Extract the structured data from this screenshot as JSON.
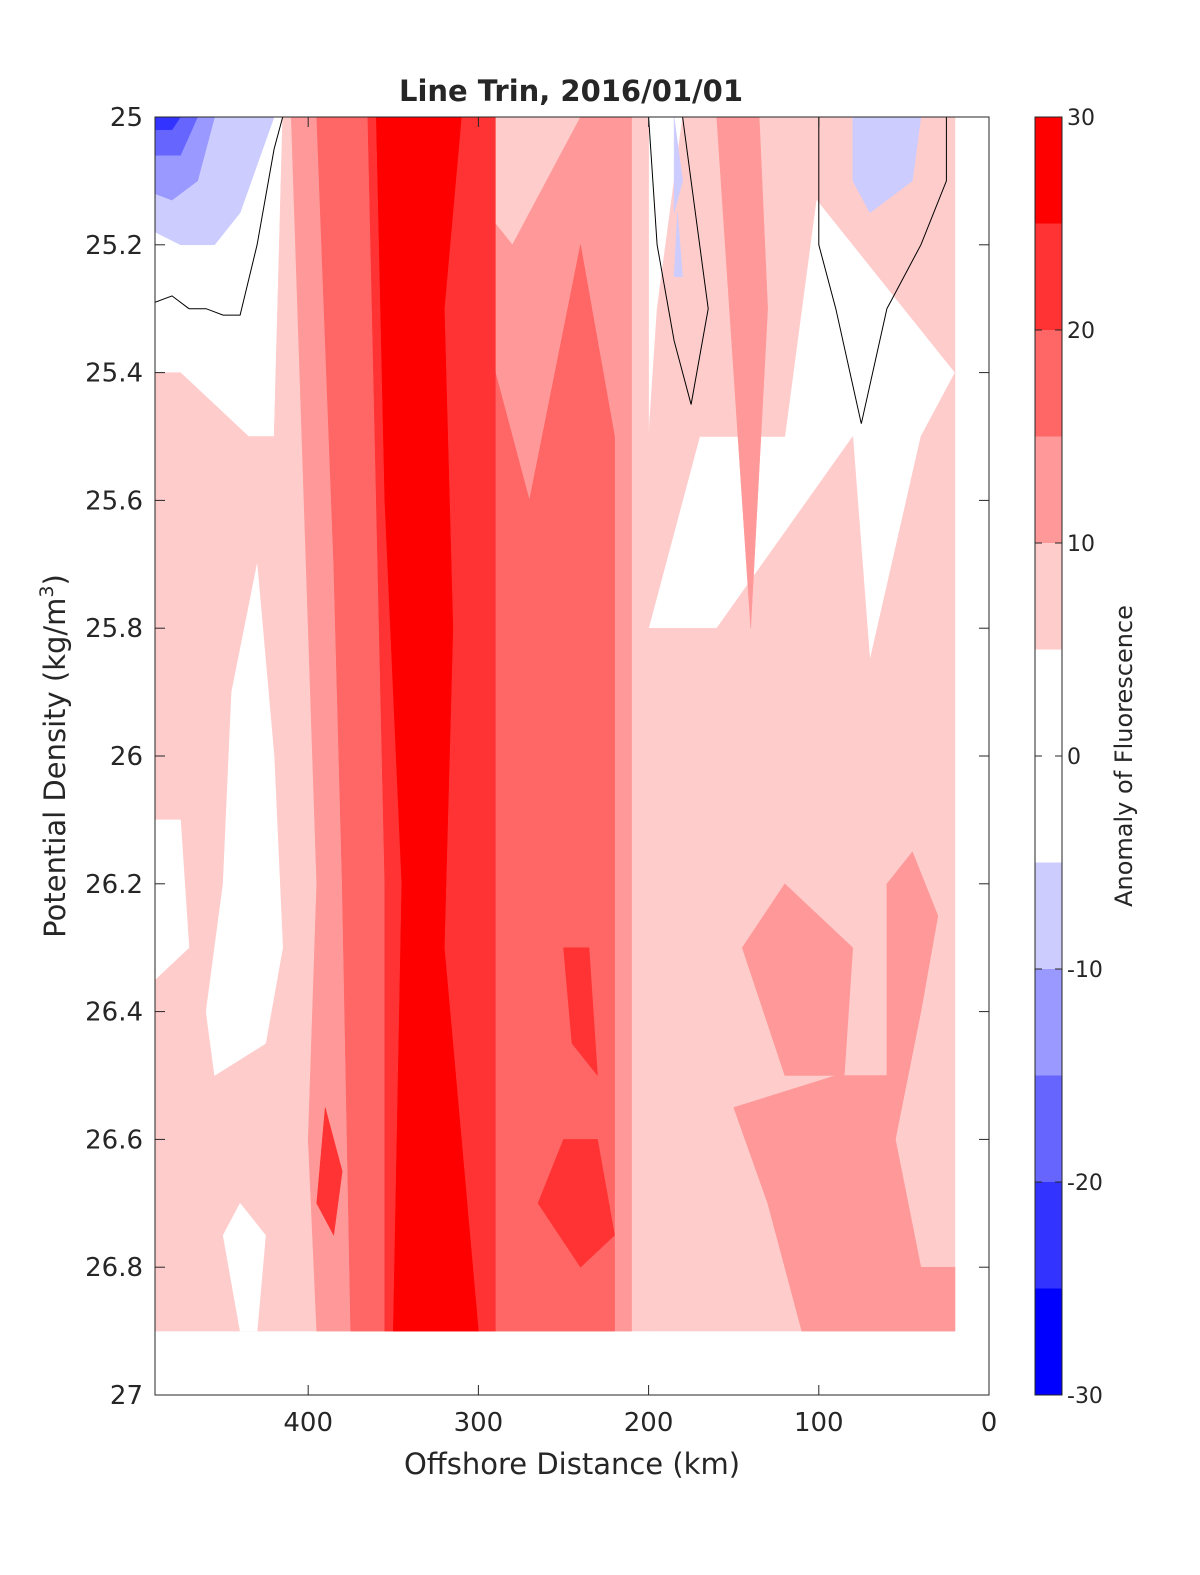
{
  "chart_data": {
    "type": "contour",
    "title": "Line Trin, 2016/01/01",
    "xlabel": "Offshore Distance (km)",
    "ylabel_main": "Potential Density (kg/m",
    "ylabel_sup": "3",
    "ylabel_close": ")",
    "colorbar_label": "Anomaly of Fluorescence",
    "xlim": [
      490,
      0
    ],
    "ylim": [
      25,
      27
    ],
    "y_reversed": true,
    "x_reversed": true,
    "xticks": [
      {
        "value": 400,
        "label": "400"
      },
      {
        "value": 300,
        "label": "300"
      },
      {
        "value": 200,
        "label": "200"
      },
      {
        "value": 100,
        "label": "100"
      },
      {
        "value": 0,
        "label": "0"
      }
    ],
    "yticks": [
      {
        "value": 25,
        "label": "25"
      },
      {
        "value": 25.2,
        "label": "25.2"
      },
      {
        "value": 25.4,
        "label": "25.4"
      },
      {
        "value": 25.6,
        "label": "25.6"
      },
      {
        "value": 25.8,
        "label": "25.8"
      },
      {
        "value": 26,
        "label": "26"
      },
      {
        "value": 26.2,
        "label": "26.2"
      },
      {
        "value": 26.4,
        "label": "26.4"
      },
      {
        "value": 26.6,
        "label": "26.6"
      },
      {
        "value": 26.8,
        "label": "26.8"
      },
      {
        "value": 27,
        "label": "27"
      }
    ],
    "colorbar": {
      "range": [
        -30,
        30
      ],
      "ticks": [
        {
          "value": 30,
          "label": "30"
        },
        {
          "value": 20,
          "label": "20"
        },
        {
          "value": 10,
          "label": "10"
        },
        {
          "value": 0,
          "label": "0"
        },
        {
          "value": -10,
          "label": "-10"
        },
        {
          "value": -20,
          "label": "-20"
        },
        {
          "value": -30,
          "label": "-30"
        }
      ],
      "levels": [
        {
          "from": 25,
          "to": 30,
          "color": "#ff0000"
        },
        {
          "from": 20,
          "to": 25,
          "color": "#ff3333"
        },
        {
          "from": 15,
          "to": 20,
          "color": "#ff6666"
        },
        {
          "from": 10,
          "to": 15,
          "color": "#ff9999"
        },
        {
          "from": 5,
          "to": 10,
          "color": "#ffcccc"
        },
        {
          "from": -5,
          "to": 5,
          "color": "#ffffff"
        },
        {
          "from": -10,
          "to": -5,
          "color": "#ccccff"
        },
        {
          "from": -15,
          "to": -10,
          "color": "#9999ff"
        },
        {
          "from": -20,
          "to": -15,
          "color": "#6666ff"
        },
        {
          "from": -25,
          "to": -20,
          "color": "#3333ff"
        },
        {
          "from": -30,
          "to": -25,
          "color": "#0000ff"
        }
      ]
    },
    "data_extent": {
      "x_min": 0,
      "x_max": 490,
      "y_bottom": 26.9
    },
    "regions": [
      {
        "level": 5,
        "points": [
          [
            490,
            25.4
          ],
          [
            475,
            25.4
          ],
          [
            455,
            25.45
          ],
          [
            435,
            25.5
          ],
          [
            420,
            25.5
          ],
          [
            415,
            25
          ],
          [
            200,
            25
          ],
          [
            200,
            26.9
          ],
          [
            490,
            26.9
          ]
        ]
      },
      {
        "level": 5,
        "points": [
          [
            200,
            25.5
          ],
          [
            195,
            25.3
          ],
          [
            180,
            25
          ],
          [
            95,
            25
          ],
          [
            120,
            25.5
          ],
          [
            170,
            25.5
          ],
          [
            200,
            25.8
          ]
        ]
      },
      {
        "level": 5,
        "points": [
          [
            140,
            25
          ],
          [
            20,
            25
          ],
          [
            20,
            26.9
          ],
          [
            200,
            26.9
          ],
          [
            200,
            25.8
          ],
          [
            160,
            25.8
          ],
          [
            80,
            25.5
          ],
          [
            70,
            25.85
          ],
          [
            40,
            25.5
          ],
          [
            20,
            25.4
          ]
        ]
      },
      {
        "level": 0,
        "points": [
          [
            430,
            25.7
          ],
          [
            445,
            25.9
          ],
          [
            450,
            26.2
          ],
          [
            460,
            26.4
          ],
          [
            455,
            26.5
          ],
          [
            425,
            26.45
          ],
          [
            415,
            26.3
          ],
          [
            420,
            26
          ]
        ]
      },
      {
        "level": 0,
        "points": [
          [
            490,
            26.1
          ],
          [
            475,
            26.1
          ],
          [
            470,
            26.3
          ],
          [
            490,
            26.35
          ]
        ]
      },
      {
        "level": 0,
        "points": [
          [
            450,
            26.75
          ],
          [
            440,
            26.9
          ],
          [
            430,
            26.9
          ],
          [
            425,
            26.75
          ],
          [
            440,
            26.7
          ]
        ]
      },
      {
        "level": 10,
        "points": [
          [
            410,
            25
          ],
          [
            395,
            26.2
          ],
          [
            400,
            26.6
          ],
          [
            395,
            26.9
          ],
          [
            210,
            26.9
          ],
          [
            210,
            25
          ],
          [
            240,
            25
          ],
          [
            280,
            25.2
          ],
          [
            340,
            25
          ],
          [
            360,
            25
          ]
        ]
      },
      {
        "level": 10,
        "points": [
          [
            160,
            25
          ],
          [
            135,
            25
          ],
          [
            130,
            25.3
          ],
          [
            140,
            25.8
          ]
        ]
      },
      {
        "level": 10,
        "points": [
          [
            145,
            26.3
          ],
          [
            120,
            26.2
          ],
          [
            80,
            26.3
          ],
          [
            85,
            26.5
          ],
          [
            120,
            26.5
          ]
        ]
      },
      {
        "level": 10,
        "points": [
          [
            60,
            26.2
          ],
          [
            45,
            26.15
          ],
          [
            30,
            26.25
          ],
          [
            40,
            26.4
          ],
          [
            55,
            26.6
          ],
          [
            40,
            26.8
          ],
          [
            20,
            26.8
          ],
          [
            20,
            26.9
          ],
          [
            110,
            26.9
          ],
          [
            130,
            26.7
          ],
          [
            150,
            26.55
          ],
          [
            90,
            26.5
          ],
          [
            60,
            26.5
          ]
        ]
      },
      {
        "level": 15,
        "points": [
          [
            395,
            25
          ],
          [
            385,
            25.7
          ],
          [
            380,
            26.2
          ],
          [
            375,
            26.9
          ],
          [
            220,
            26.9
          ],
          [
            220,
            25.5
          ],
          [
            240,
            25.2
          ],
          [
            270,
            25.6
          ],
          [
            290,
            25.4
          ],
          [
            300,
            25.2
          ],
          [
            310,
            25
          ]
        ]
      },
      {
        "level": 20,
        "points": [
          [
            365,
            25
          ],
          [
            360,
            25.6
          ],
          [
            355,
            26.2
          ],
          [
            355,
            26.9
          ],
          [
            290,
            26.9
          ],
          [
            290,
            25
          ]
        ]
      },
      {
        "level": 20,
        "points": [
          [
            250,
            26.3
          ],
          [
            235,
            26.3
          ],
          [
            230,
            26.5
          ],
          [
            245,
            26.45
          ]
        ]
      },
      {
        "level": 20,
        "points": [
          [
            390,
            26.55
          ],
          [
            380,
            26.65
          ],
          [
            385,
            26.75
          ],
          [
            395,
            26.7
          ]
        ]
      },
      {
        "level": 20,
        "points": [
          [
            230,
            26.6
          ],
          [
            220,
            26.75
          ],
          [
            240,
            26.8
          ],
          [
            265,
            26.7
          ],
          [
            250,
            26.6
          ]
        ]
      },
      {
        "level": 25,
        "points": [
          [
            360,
            25
          ],
          [
            355,
            25.6
          ],
          [
            345,
            26.2
          ],
          [
            350,
            26.9
          ],
          [
            300,
            26.9
          ],
          [
            310,
            26.6
          ],
          [
            320,
            26.3
          ],
          [
            315,
            25.8
          ],
          [
            320,
            25.3
          ],
          [
            310,
            25
          ]
        ]
      },
      {
        "level": -10,
        "points": [
          [
            490,
            25
          ],
          [
            420,
            25
          ],
          [
            440,
            25.15
          ],
          [
            455,
            25.2
          ],
          [
            475,
            25.2
          ],
          [
            490,
            25.18
          ]
        ]
      },
      {
        "level": -15,
        "points": [
          [
            490,
            25
          ],
          [
            455,
            25
          ],
          [
            465,
            25.1
          ],
          [
            480,
            25.13
          ],
          [
            490,
            25.12
          ]
        ]
      },
      {
        "level": -20,
        "points": [
          [
            490,
            25
          ],
          [
            465,
            25
          ],
          [
            475,
            25.06
          ],
          [
            490,
            25.06
          ]
        ]
      },
      {
        "level": -25,
        "points": [
          [
            490,
            25
          ],
          [
            475,
            25
          ],
          [
            480,
            25.02
          ],
          [
            490,
            25.02
          ]
        ]
      },
      {
        "level": -10,
        "points": [
          [
            80,
            25
          ],
          [
            40,
            25
          ],
          [
            45,
            25.1
          ],
          [
            70,
            25.15
          ],
          [
            80,
            25.1
          ]
        ]
      },
      {
        "level": -10,
        "points": [
          [
            185,
            25
          ],
          [
            180,
            25.1
          ],
          [
            185,
            25.15
          ]
        ]
      },
      {
        "level": -10,
        "points": [
          [
            183,
            25.15
          ],
          [
            180,
            25.25
          ],
          [
            185,
            25.25
          ]
        ]
      }
    ],
    "zero_contours": [
      [
        [
          490,
          25.29
        ],
        [
          480,
          25.28
        ],
        [
          470,
          25.3
        ],
        [
          460,
          25.3
        ],
        [
          450,
          25.31
        ],
        [
          440,
          25.31
        ],
        [
          430,
          25.2
        ],
        [
          420,
          25.05
        ],
        [
          415,
          25
        ]
      ],
      [
        [
          200,
          25
        ],
        [
          195,
          25.2
        ],
        [
          185,
          25.35
        ],
        [
          175,
          25.45
        ],
        [
          165,
          25.3
        ],
        [
          175,
          25.1
        ],
        [
          180,
          25
        ]
      ],
      [
        [
          100,
          25
        ],
        [
          100,
          25.2
        ],
        [
          90,
          25.3
        ],
        [
          75,
          25.48
        ],
        [
          60,
          25.3
        ],
        [
          40,
          25.2
        ],
        [
          25,
          25.1
        ],
        [
          25,
          25
        ]
      ]
    ]
  }
}
